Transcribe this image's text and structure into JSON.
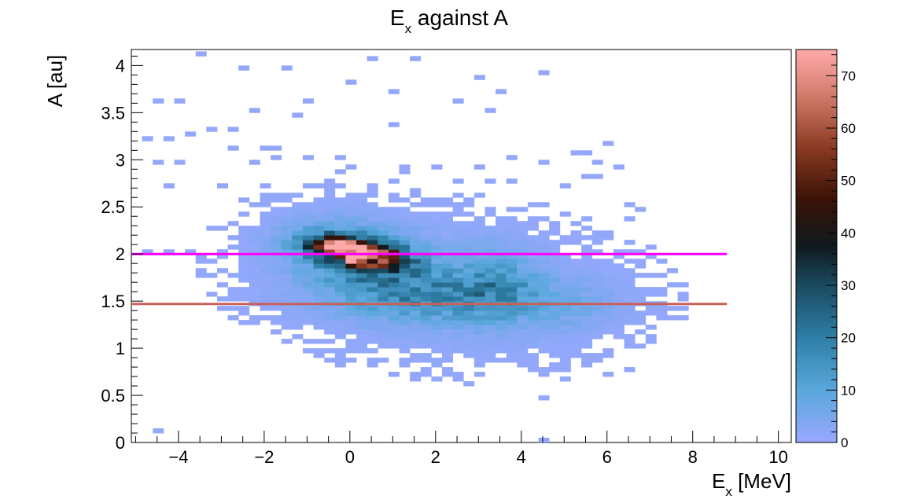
{
  "chart_data": {
    "type": "heatmap",
    "title": {
      "main": "E",
      "sub": "x",
      "rest": " against A"
    },
    "xlabel": {
      "main": "E",
      "sub": "x",
      "rest": " [MeV]"
    },
    "ylabel": "A [au]",
    "xlim": [
      -5.1,
      10.3
    ],
    "ylim": [
      0,
      4.17
    ],
    "zlim": [
      0,
      75
    ],
    "bin_width_x": 0.25,
    "bin_height_y": 0.05,
    "x_ticks": [
      -4,
      -2,
      0,
      2,
      4,
      6,
      8,
      10
    ],
    "x_tick_labels": [
      "−4",
      "−2",
      "0",
      "2",
      "4",
      "6",
      "8",
      "10"
    ],
    "y_ticks": [
      0,
      0.5,
      1,
      1.5,
      2,
      2.5,
      3,
      3.5,
      4
    ],
    "y_tick_labels": [
      "0",
      "0.5",
      "1",
      "1.5",
      "2",
      "2.5",
      "3",
      "3.5",
      "4"
    ],
    "z_ticks": [
      0,
      10,
      20,
      30,
      40,
      50,
      60,
      70
    ],
    "z_tick_labels": [
      "0",
      "10",
      "20",
      "30",
      "40",
      "50",
      "60",
      "70"
    ],
    "colormap": [
      "#99a8ff",
      "#5aa8dc",
      "#2e7ea6",
      "#1a4a60",
      "#0f1a1e",
      "#3a1206",
      "#8a3a22",
      "#d07a6a",
      "#ffaaaa"
    ],
    "lines": [
      {
        "y": 2.0,
        "x_start": -5.1,
        "x_end": 8.8,
        "color": "#ff00ff"
      },
      {
        "y": 1.47,
        "x_start": -5.1,
        "x_end": 8.8,
        "color": "#c8605a"
      }
    ],
    "sparse_bins": [
      [
        -3.4,
        4.12,
        1
      ],
      [
        -2.4,
        3.97,
        1
      ],
      [
        -1.4,
        3.97,
        1
      ],
      [
        0.4,
        4.07,
        1
      ],
      [
        1.4,
        4.07,
        1
      ],
      [
        0,
        3.82,
        1
      ],
      [
        2.9,
        3.87,
        1
      ],
      [
        4.6,
        3.92,
        1
      ],
      [
        -0.9,
        3.62,
        1
      ],
      [
        0.9,
        3.72,
        1
      ],
      [
        2.4,
        3.62,
        1
      ],
      [
        3.6,
        3.72,
        1
      ],
      [
        -4.6,
        3.62,
        1
      ],
      [
        -4.1,
        3.62,
        1
      ],
      [
        -2.2,
        3.52,
        1
      ],
      [
        -1.3,
        3.47,
        1
      ],
      [
        3.2,
        3.52,
        1
      ],
      [
        -3.2,
        3.32,
        1
      ],
      [
        -2.8,
        3.32,
        1
      ],
      [
        -4.8,
        3.22,
        1
      ],
      [
        -4.3,
        3.22,
        1
      ],
      [
        1.0,
        3.37,
        1
      ],
      [
        -3.8,
        3.27,
        1
      ],
      [
        -2.6,
        3.13,
        1
      ],
      [
        -2.0,
        3.13,
        1
      ],
      [
        -1.7,
        3.12,
        1
      ],
      [
        -1.6,
        3.02,
        1
      ],
      [
        -2.3,
        2.98,
        1
      ],
      [
        -0.9,
        3.03,
        1
      ],
      [
        -0.2,
        3.02,
        1
      ],
      [
        0.1,
        2.92,
        1
      ],
      [
        -0.3,
        2.87,
        1
      ],
      [
        1.2,
        2.92,
        1
      ],
      [
        2.0,
        2.92,
        1
      ],
      [
        2.9,
        2.92,
        1
      ],
      [
        3.8,
        3.02,
        1
      ],
      [
        4.6,
        2.98,
        1
      ],
      [
        5.3,
        3.08,
        1
      ],
      [
        5.6,
        3.08,
        1
      ],
      [
        5.7,
        2.98,
        1
      ],
      [
        6.0,
        3.18,
        1
      ],
      [
        6.3,
        2.92,
        1
      ],
      [
        -4.6,
        2.98,
        1
      ],
      [
        -4.1,
        2.98,
        1
      ],
      [
        -4.3,
        2.7,
        1
      ],
      [
        -3.0,
        2.7,
        1
      ],
      [
        -2.0,
        2.7,
        1
      ],
      [
        -0.8,
        2.7,
        1
      ],
      [
        -0.2,
        2.7,
        1
      ],
      [
        0.9,
        2.75,
        1
      ],
      [
        1.3,
        2.85,
        1
      ],
      [
        2.4,
        2.75,
        1
      ],
      [
        3.3,
        2.75,
        1
      ],
      [
        3.7,
        2.75,
        1
      ],
      [
        4.9,
        2.72,
        1
      ],
      [
        5.4,
        2.82,
        1
      ],
      [
        5.8,
        2.82,
        1
      ],
      [
        1.6,
        2.62,
        1
      ],
      [
        1.9,
        2.55,
        1
      ],
      [
        2.6,
        2.6,
        1
      ],
      [
        3.1,
        2.62,
        1
      ],
      [
        3.9,
        2.45,
        1
      ],
      [
        4.2,
        2.55,
        1
      ],
      [
        4.5,
        2.5,
        1
      ],
      [
        5.1,
        2.42,
        1
      ],
      [
        6.4,
        2.52,
        1
      ],
      [
        6.6,
        2.35,
        1
      ],
      [
        6.8,
        2.45,
        1
      ],
      [
        5.5,
        2.35,
        1
      ],
      [
        5.8,
        2.22,
        1
      ],
      [
        -1.0,
        2.55,
        1
      ],
      [
        -0.6,
        2.58,
        1
      ],
      [
        0.2,
        2.6,
        1
      ],
      [
        -1.5,
        2.6,
        1
      ],
      [
        -1.3,
        2.6,
        1
      ],
      [
        -4.4,
        0.12,
        1
      ],
      [
        4.4,
        0.02,
        1
      ],
      [
        4.4,
        0.45,
        1
      ],
      [
        2.8,
        0.62,
        1
      ],
      [
        2.5,
        0.65,
        1
      ],
      [
        3.1,
        0.72,
        1
      ],
      [
        3.5,
        0.85,
        1
      ],
      [
        4.9,
        0.7,
        1
      ],
      [
        5.9,
        0.72,
        1
      ],
      [
        6.4,
        0.75,
        1
      ],
      [
        5.4,
        0.8,
        1
      ],
      [
        5.6,
        0.8,
        1
      ],
      [
        1.8,
        0.85,
        1
      ],
      [
        1.3,
        0.85,
        1
      ],
      [
        2.2,
        0.75,
        1
      ],
      [
        -1.4,
        1.05,
        1
      ],
      [
        -0.9,
        1.07,
        1
      ],
      [
        -0.4,
        1.07,
        1
      ],
      [
        0.3,
        1.1,
        1
      ],
      [
        6.9,
        1.07,
        1
      ],
      [
        6.9,
        1.35,
        1
      ],
      [
        7.0,
        1.55,
        1
      ],
      [
        -3.0,
        1.45,
        1
      ],
      [
        -2.1,
        1.5,
        1
      ],
      [
        -2.6,
        1.55,
        1
      ],
      [
        -3.3,
        1.58,
        1
      ],
      [
        -3.2,
        1.75,
        1
      ],
      [
        -2.3,
        1.75,
        1
      ],
      [
        -2.1,
        1.88,
        1
      ],
      [
        -2.9,
        1.95,
        1
      ],
      [
        -4.2,
        2.0,
        1
      ],
      [
        -3.6,
        2.02,
        1
      ],
      [
        -2.4,
        2.0,
        1
      ],
      [
        -4.8,
        2.0,
        1
      ],
      [
        6.1,
        1.9,
        1
      ],
      [
        6.5,
        1.92,
        1
      ],
      [
        5.8,
        2.0,
        1
      ],
      [
        5.3,
        1.8,
        1
      ],
      [
        6.4,
        1.62,
        1
      ],
      [
        6.2,
        1.77,
        1
      ]
    ],
    "blobs": [
      {
        "x": 0.1,
        "y": 2.03,
        "sx": 0.65,
        "sy": 0.1,
        "amp": 75,
        "rho": -0.45
      },
      {
        "x": 0.3,
        "y": 1.95,
        "sx": 1.0,
        "sy": 0.22,
        "amp": 18,
        "rho": -0.3
      },
      {
        "x": 1.9,
        "y": 1.55,
        "sx": 1.5,
        "sy": 0.18,
        "amp": 12,
        "rho": 0
      },
      {
        "x": 3.4,
        "y": 1.7,
        "sx": 0.6,
        "sy": 0.25,
        "amp": 10,
        "rho": 0
      },
      {
        "x": 2.8,
        "y": 1.55,
        "sx": 2.3,
        "sy": 0.4,
        "amp": 3.5,
        "rho": 0
      },
      {
        "x": 0.0,
        "y": 2.0,
        "sx": 1.6,
        "sy": 0.35,
        "amp": 3,
        "rho": 0
      },
      {
        "x": 5.0,
        "y": 1.45,
        "sx": 0.9,
        "sy": 0.18,
        "amp": 4,
        "rho": 0
      }
    ]
  }
}
